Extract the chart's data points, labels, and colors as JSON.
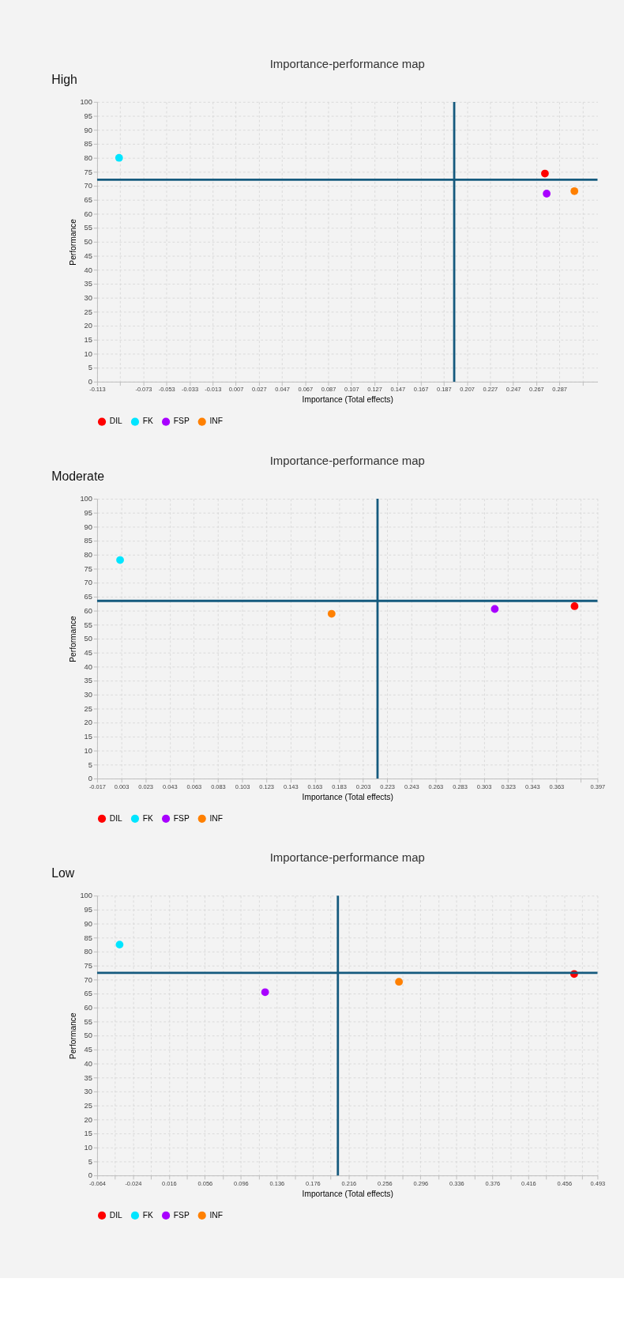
{
  "chart_data": [
    {
      "type": "scatter",
      "title": "Importance-performance map",
      "annotations": [
        "High"
      ],
      "xlabel": "Importance (Total effects)",
      "ylabel": "Performance",
      "xlim": [
        -0.113,
        0.32
      ],
      "xticks": [
        -0.113,
        {
          "value": -0.093,
          "label": null
        },
        -0.073,
        -0.053,
        -0.033,
        -0.013,
        0.007,
        0.027,
        0.047,
        0.067,
        0.087,
        0.107,
        0.127,
        0.147,
        0.167,
        0.187,
        0.207,
        0.227,
        0.247,
        0.267,
        0.287,
        {
          "value": 0.307,
          "label": null
        }
      ],
      "ylim": [
        0,
        100
      ],
      "yticks": [
        0,
        5,
        10,
        15,
        20,
        25,
        30,
        35,
        40,
        45,
        50,
        55,
        60,
        65,
        70,
        75,
        80,
        85,
        90,
        95,
        100
      ],
      "series": [
        {
          "name": "DIL",
          "color": "#ff0000",
          "x": [
            0.2745
          ],
          "values": [
            74.4
          ]
        },
        {
          "name": "FK",
          "color": "#00e5ff",
          "x": [
            -0.094
          ],
          "values": [
            80.0
          ]
        },
        {
          "name": "FSP",
          "color": "#a800ff",
          "x": [
            0.276
          ],
          "values": [
            67.2
          ]
        },
        {
          "name": "INF",
          "color": "#ff8000",
          "x": [
            0.3
          ],
          "values": [
            68.1
          ]
        }
      ],
      "ref_lines": [
        {
          "axis": "x",
          "value": 0.196,
          "color": "#155a7e"
        },
        {
          "axis": "y",
          "value": 72.2,
          "color": "#155a7e"
        }
      ],
      "grid": true,
      "legend": "bottom",
      "marker": "circle"
    },
    {
      "type": "scatter",
      "title": "Importance-performance map",
      "annotations": [
        "Moderate"
      ],
      "xlabel": "Importance (Total effects)",
      "ylabel": "Performance",
      "xlim": [
        -0.017,
        0.397
      ],
      "xticks": [
        -0.017,
        0.003,
        0.023,
        0.043,
        0.063,
        0.083,
        0.103,
        0.123,
        0.143,
        0.163,
        0.183,
        0.203,
        0.223,
        0.243,
        0.263,
        0.283,
        0.303,
        0.323,
        0.343,
        0.363,
        {
          "value": 0.383,
          "label": null
        },
        0.397
      ],
      "ylim": [
        0,
        100
      ],
      "yticks": [
        0,
        5,
        10,
        15,
        20,
        25,
        30,
        35,
        40,
        45,
        50,
        55,
        60,
        65,
        70,
        75,
        80,
        85,
        90,
        95,
        100
      ],
      "series": [
        {
          "name": "DIL",
          "color": "#ff0000",
          "x": [
            0.378
          ],
          "values": [
            61.6
          ]
        },
        {
          "name": "FK",
          "color": "#00e5ff",
          "x": [
            0.002
          ],
          "values": [
            78.1
          ]
        },
        {
          "name": "FSP",
          "color": "#a800ff",
          "x": [
            0.312
          ],
          "values": [
            60.6
          ]
        },
        {
          "name": "INF",
          "color": "#ff8000",
          "x": [
            0.177
          ],
          "values": [
            58.9
          ]
        }
      ],
      "ref_lines": [
        {
          "axis": "x",
          "value": 0.215,
          "color": "#155a7e"
        },
        {
          "axis": "y",
          "value": 63.5,
          "color": "#155a7e"
        }
      ],
      "grid": true,
      "legend": "bottom",
      "marker": "circle"
    },
    {
      "type": "scatter",
      "title": "Importance-performance map",
      "annotations": [
        "Low"
      ],
      "xlabel": "Importance (Total effects)",
      "ylabel": "Performance",
      "xlim": [
        -0.064,
        0.493
      ],
      "xticks": [
        -0.064,
        {
          "value": -0.044,
          "label": null
        },
        -0.024,
        {
          "value": -0.004,
          "label": null
        },
        0.016,
        {
          "value": 0.036,
          "label": null
        },
        0.056,
        {
          "value": 0.076,
          "label": null
        },
        0.096,
        {
          "value": 0.116,
          "label": null
        },
        0.136,
        {
          "value": 0.156,
          "label": null
        },
        0.176,
        {
          "value": 0.196,
          "label": null
        },
        0.216,
        {
          "value": 0.236,
          "label": null
        },
        0.256,
        {
          "value": 0.276,
          "label": null
        },
        0.296,
        {
          "value": 0.316,
          "label": null
        },
        0.336,
        {
          "value": 0.356,
          "label": null
        },
        0.376,
        {
          "value": 0.396,
          "label": null
        },
        0.416,
        {
          "value": 0.436,
          "label": null
        },
        0.456,
        {
          "value": 0.476,
          "label": null
        },
        0.493
      ],
      "ylim": [
        0,
        100
      ],
      "yticks": [
        0,
        5,
        10,
        15,
        20,
        25,
        30,
        35,
        40,
        45,
        50,
        55,
        60,
        65,
        70,
        75,
        80,
        85,
        90,
        95,
        100
      ],
      "series": [
        {
          "name": "DIL",
          "color": "#ff0000",
          "x": [
            0.467
          ],
          "values": [
            72.0
          ]
        },
        {
          "name": "FK",
          "color": "#00e5ff",
          "x": [
            -0.039
          ],
          "values": [
            82.5
          ]
        },
        {
          "name": "FSP",
          "color": "#a800ff",
          "x": [
            0.123
          ],
          "values": [
            65.5
          ]
        },
        {
          "name": "INF",
          "color": "#ff8000",
          "x": [
            0.272
          ],
          "values": [
            69.2
          ]
        }
      ],
      "ref_lines": [
        {
          "axis": "x",
          "value": 0.204,
          "color": "#155a7e"
        },
        {
          "axis": "y",
          "value": 72.4,
          "color": "#155a7e"
        }
      ],
      "grid": true,
      "legend": "bottom",
      "marker": "circle"
    }
  ]
}
